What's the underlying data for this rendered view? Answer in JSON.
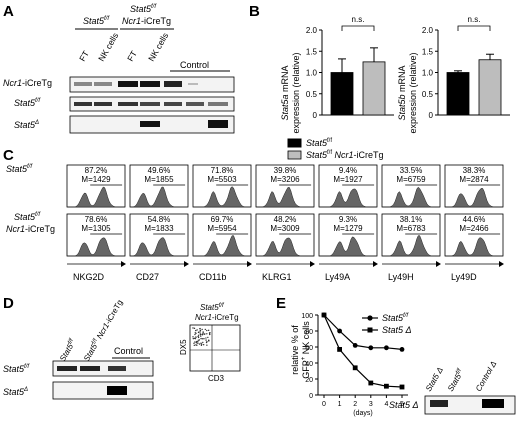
{
  "panels": {
    "A": "A",
    "B": "B",
    "C": "C",
    "D": "D",
    "E": "E"
  },
  "panelA": {
    "group1": "Stat5",
    "group1_sup": "f/f",
    "group2_line1": "Stat5",
    "group2_sup": "f/f",
    "group2_line2_italic": "Ncr1",
    "group2_line2_rest": "-iCreTg",
    "lanes": [
      "FT",
      "NK cells",
      "FT",
      "NK cells"
    ],
    "control": "Control",
    "rows": [
      {
        "name_italic": "Ncr1",
        "name_rest": "-iCreTg"
      },
      {
        "name_italic": "Stat5",
        "name_sup": "f/f"
      },
      {
        "name_italic": "Stat5",
        "name_sup": "Δ"
      }
    ]
  },
  "panelB": {
    "ns": "n.s.",
    "ylabel_a_italic": "Stat5a",
    "ylabel_a_rest": " mRNA",
    "ylabel_b_italic": "Stat5b",
    "ylabel_b_rest": " mRNA",
    "ylabel_line2": "expression (relative)",
    "legend": [
      {
        "italic": "Stat5",
        "sup": "f/f",
        "rest": ""
      },
      {
        "italic": "Stat5",
        "sup": "f/f",
        "rest_italic": " Ncr1",
        "rest": "-iCreTg"
      }
    ],
    "colors": {
      "ctrl": "#000000",
      "tg": "#bdbdbd"
    }
  },
  "chart_data": [
    {
      "type": "bar",
      "categories": [
        "Stat5 f/f",
        "Stat5 f/f Ncr1-iCreTg"
      ],
      "values": [
        1.0,
        1.25
      ],
      "errors": [
        0.32,
        0.33
      ],
      "ylabel": "Stat5a mRNA expression (relative)",
      "ylim": [
        0,
        2.0
      ],
      "yticks": [
        "0",
        "0.5",
        "1.0",
        "1.5",
        "2.0"
      ],
      "annotation": "n.s."
    },
    {
      "type": "bar",
      "categories": [
        "Stat5 f/f",
        "Stat5 f/f Ncr1-iCreTg"
      ],
      "values": [
        1.0,
        1.3
      ],
      "errors": [
        0.04,
        0.13
      ],
      "ylabel": "Stat5b mRNA expression (relative)",
      "ylim": [
        0,
        2.0
      ],
      "yticks": [
        "0",
        "0.5",
        "1.0",
        "1.5",
        "2.0"
      ],
      "annotation": "n.s."
    },
    {
      "type": "line",
      "xlabel": "(days)",
      "ylabel": "relative % of GFP+ NK cells",
      "ylim": [
        0,
        100
      ],
      "yticks": [
        "0",
        "20",
        "40",
        "60",
        "80",
        "100"
      ],
      "xticks": [
        "0",
        "1",
        "2",
        "3",
        "4",
        "5"
      ],
      "series": [
        {
          "name": "Stat5 f/f",
          "x": [
            0,
            1,
            2,
            3,
            4,
            5
          ],
          "y": [
            100,
            80,
            62,
            59,
            59,
            57
          ],
          "marker": "circle"
        },
        {
          "name": "Stat5 Δ",
          "x": [
            0,
            1,
            2,
            3,
            4,
            5
          ],
          "y": [
            100,
            57,
            34,
            15,
            11,
            10
          ],
          "marker": "square"
        }
      ]
    }
  ],
  "panelC": {
    "row1_label": {
      "italic": "Stat5",
      "sup": "f/f"
    },
    "row2_label": {
      "italic": "Stat5",
      "sup": "f/f",
      "line2_italic": "Ncr1",
      "line2_rest": "-iCreTg"
    },
    "markers": [
      "NKG2D",
      "CD27",
      "CD11b",
      "KLRG1",
      "Ly49A",
      "Ly49H",
      "Ly49D"
    ],
    "row1": [
      {
        "pct": "87.2%",
        "m": "M=1429"
      },
      {
        "pct": "49.6%",
        "m": "M=1855"
      },
      {
        "pct": "71.8%",
        "m": "M=5503"
      },
      {
        "pct": "39.8%",
        "m": "M=3206"
      },
      {
        "pct": "9.4%",
        "m": "M=1927"
      },
      {
        "pct": "33.5%",
        "m": "M=6759"
      },
      {
        "pct": "38.3%",
        "m": "M=2874"
      }
    ],
    "row2": [
      {
        "pct": "78.6%",
        "m": "M=1305"
      },
      {
        "pct": "54.8%",
        "m": "M=1833"
      },
      {
        "pct": "69.7%",
        "m": "M=5954"
      },
      {
        "pct": "48.2%",
        "m": "M=3009"
      },
      {
        "pct": "9.3%",
        "m": "M=1279"
      },
      {
        "pct": "38.1%",
        "m": "M=6783"
      },
      {
        "pct": "44.6%",
        "m": "M=2466"
      }
    ]
  },
  "panelD": {
    "lane1": "Stat5",
    "lane1_sup": "f/f",
    "lane2": "Stat5",
    "lane2_sup": "f/f",
    "lane2_rest_italic": " Ncr1",
    "lane2_rest": "-iCreTg",
    "control": "Control",
    "row1": {
      "italic": "Stat5",
      "sup": "f/f"
    },
    "row2": {
      "italic": "Stat5",
      "sup": "Δ"
    },
    "facs_title_italic": "Stat5",
    "facs_title_sup": "f/f",
    "facs_title2_italic": "Ncr1",
    "facs_title2_rest": "-iCreTg",
    "facs_x": "CD3",
    "facs_y": "DX5"
  },
  "panelE": {
    "legend": [
      {
        "italic": "Stat5",
        "sup": "f/f"
      },
      {
        "italic": "Stat5",
        "sup": " Δ"
      }
    ],
    "ylabel1": "relative % of",
    "ylabel2": "GFP",
    "ylabel2_sup": "+",
    "ylabel2_rest": " NK cells",
    "xlabel": "(days)",
    "gel_lanes": [
      {
        "italic": "Stat5",
        "sup": " Δ"
      },
      {
        "italic": "Stat5",
        "sup": "f/f"
      },
      {
        "italic": "Control",
        "sup": " Δ"
      }
    ],
    "gel_row": {
      "italic": "Stat5",
      "sup": " Δ"
    }
  }
}
